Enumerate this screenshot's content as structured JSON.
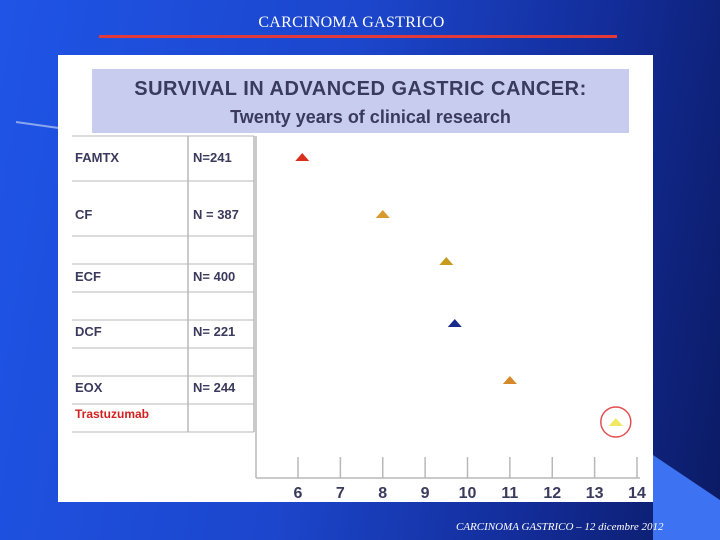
{
  "slide": {
    "title": "CARCINOMA GASTRICO",
    "footer": "CARCINOMA GASTRICO – 12 dicembre 2012"
  },
  "colors": {
    "title_rule": "#e23a3a",
    "highlight_text": "#d21f1f",
    "circle": "#e05050"
  },
  "chart_data": {
    "type": "scatter",
    "title": "SURVIVAL IN ADVANCED GASTRIC CANCER:",
    "subtitle": "Twenty years of clinical research",
    "x_ticks": [
      6,
      7,
      8,
      9,
      10,
      11,
      12,
      13,
      14
    ],
    "xlim": [
      5.9,
      14.1
    ],
    "grid": false,
    "rows": [
      {
        "label": "FAMTX",
        "n": "N=241",
        "x": 6.1,
        "color": "#d8301c",
        "highlight": false
      },
      {
        "label": "CF",
        "n": "N = 387",
        "x": 8.0,
        "color": "#d89a2a",
        "highlight": false
      },
      {
        "label": "ECF",
        "n": "N= 400",
        "x": 9.5,
        "color": "#c79a20",
        "highlight": false
      },
      {
        "label": "DCF",
        "n": "N= 221",
        "x": 9.7,
        "color": "#1a2a8a",
        "highlight": false
      },
      {
        "label": "EOX",
        "n": "N= 244",
        "x": 11.0,
        "color": "#d48a2a",
        "highlight": false
      },
      {
        "label": "Trastuzumab",
        "n": "",
        "x": 13.5,
        "color": "#f0e860",
        "highlight": true
      }
    ]
  }
}
